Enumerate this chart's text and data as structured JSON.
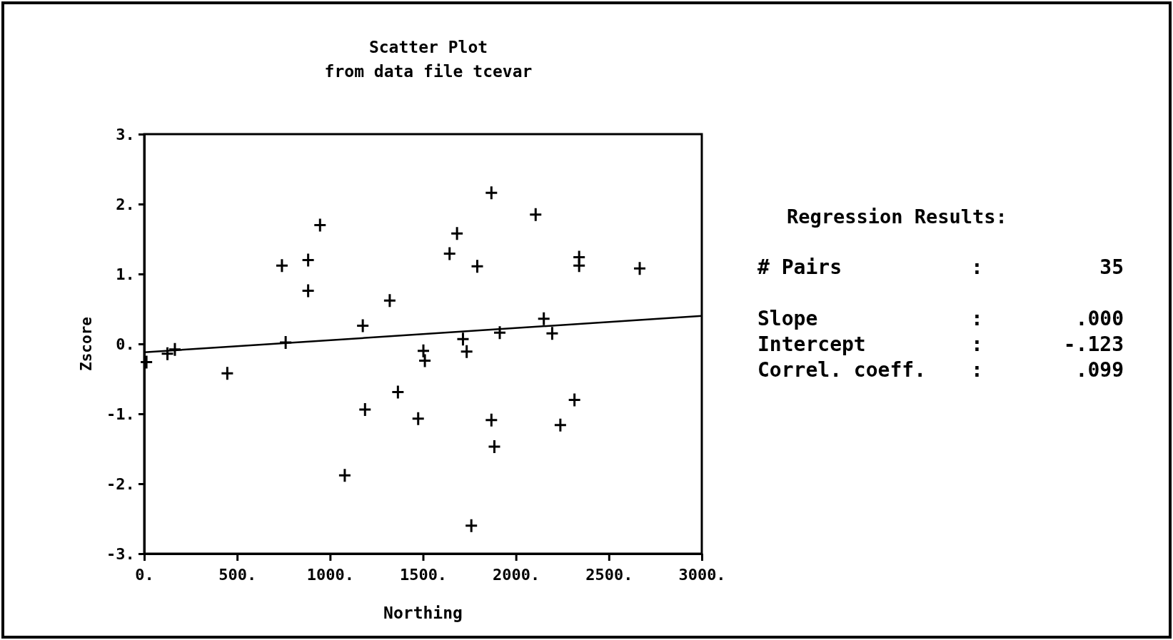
{
  "chart_data": {
    "type": "scatter",
    "title": "Scatter Plot",
    "subtitle": "from data file tcevar",
    "xlabel": "Northing",
    "ylabel": "Zscore",
    "xlim": [
      0,
      3000
    ],
    "ylim": [
      -3,
      3
    ],
    "xticks": [
      {
        "value": 0,
        "label": "0."
      },
      {
        "value": 500,
        "label": "500."
      },
      {
        "value": 1000,
        "label": "1000."
      },
      {
        "value": 1500,
        "label": "1500."
      },
      {
        "value": 2000,
        "label": "2000."
      },
      {
        "value": 2500,
        "label": "2500."
      },
      {
        "value": 3000,
        "label": "3000."
      }
    ],
    "yticks": [
      {
        "value": -3,
        "label": "-3."
      },
      {
        "value": -2,
        "label": "-2."
      },
      {
        "value": -1,
        "label": "-1."
      },
      {
        "value": 0,
        "label": "0."
      },
      {
        "value": 1,
        "label": "1."
      },
      {
        "value": 2,
        "label": "2."
      },
      {
        "value": 3,
        "label": "3."
      }
    ],
    "grid": false,
    "marker": "cross",
    "series": [
      {
        "color": "#000000",
        "x": [
          12,
          125,
          165,
          447,
          741,
          761,
          882,
          882,
          946,
          1079,
          1176,
          1188,
          1321,
          1365,
          1474,
          1502,
          1510,
          1643,
          1683,
          1715,
          1735,
          1760,
          1792,
          1868,
          1868,
          1884,
          1913,
          2106,
          2150,
          2195,
          2239,
          2315,
          2340,
          2340,
          2666
        ],
        "values": [
          -0.26,
          -0.14,
          -0.08,
          -0.42,
          1.12,
          0.02,
          1.2,
          0.76,
          1.7,
          -1.88,
          0.26,
          -0.94,
          0.62,
          -0.69,
          -1.07,
          -0.1,
          -0.24,
          1.29,
          1.58,
          0.07,
          -0.11,
          -2.6,
          1.11,
          -1.09,
          2.16,
          -1.47,
          0.16,
          1.85,
          0.36,
          0.15,
          -1.16,
          -0.8,
          1.24,
          1.12,
          1.08
        ]
      },
      {
        "type": "line",
        "color": "#000000",
        "x": [
          0,
          3000
        ],
        "values": [
          -0.12,
          0.4
        ],
        "line_style": "solid",
        "marker": "none"
      }
    ],
    "annotations": [
      "Regression Results:",
      "# Pairs",
      ":",
      "35",
      "Slope",
      ":",
      ".000",
      "Intercept",
      ":",
      "-.123",
      "Correl. coeff.",
      ":",
      ".099"
    ]
  }
}
